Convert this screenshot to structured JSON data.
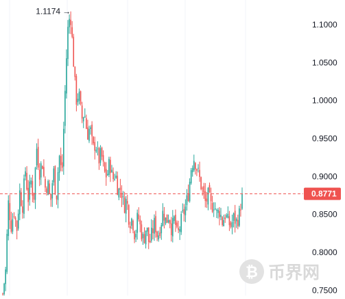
{
  "chart_data": {
    "type": "candlestick",
    "y_ticks": [
      "1.1000",
      "1.0500",
      "1.0000",
      "0.9500",
      "0.9000",
      "0.8500",
      "0.8000",
      "0.7500"
    ],
    "ylim": [
      0.743,
      1.118
    ],
    "grid": "vertical-only",
    "colors": {
      "up": "#26a69a",
      "down": "#ef5350",
      "grid": "#f0f3fa",
      "price_line": "#ef5350"
    },
    "current_price": {
      "value": 0.8771,
      "label": "0.8771"
    },
    "peak": {
      "value": 1.1174,
      "label": "1.1174"
    },
    "path": [
      0.745,
      0.775,
      0.865,
      0.835,
      0.855,
      0.83,
      0.88,
      0.86,
      0.91,
      0.87,
      0.895,
      0.87,
      0.94,
      0.905,
      0.92,
      0.885,
      0.89,
      0.865,
      0.91,
      0.87,
      0.93,
      0.9,
      1.0,
      1.09,
      1.1174,
      1.06,
      1.0,
      1.01,
      0.975,
      0.985,
      0.955,
      0.965,
      0.935,
      0.945,
      0.92,
      0.93,
      0.905,
      0.9,
      0.92,
      0.895,
      0.905,
      0.88,
      0.885,
      0.86,
      0.87,
      0.84,
      0.845,
      0.82,
      0.85,
      0.83,
      0.815,
      0.835,
      0.81,
      0.825,
      0.84,
      0.82,
      0.835,
      0.855,
      0.84,
      0.85,
      0.83,
      0.845,
      0.82,
      0.835,
      0.85,
      0.86,
      0.88,
      0.915,
      0.925,
      0.91,
      0.895,
      0.88,
      0.865,
      0.875,
      0.86,
      0.865,
      0.85,
      0.855,
      0.84,
      0.85,
      0.84,
      0.835,
      0.845,
      0.84,
      0.85,
      0.8771
    ]
  },
  "watermark": {
    "text": "币界网",
    "icon": "bitcoin-icon"
  }
}
